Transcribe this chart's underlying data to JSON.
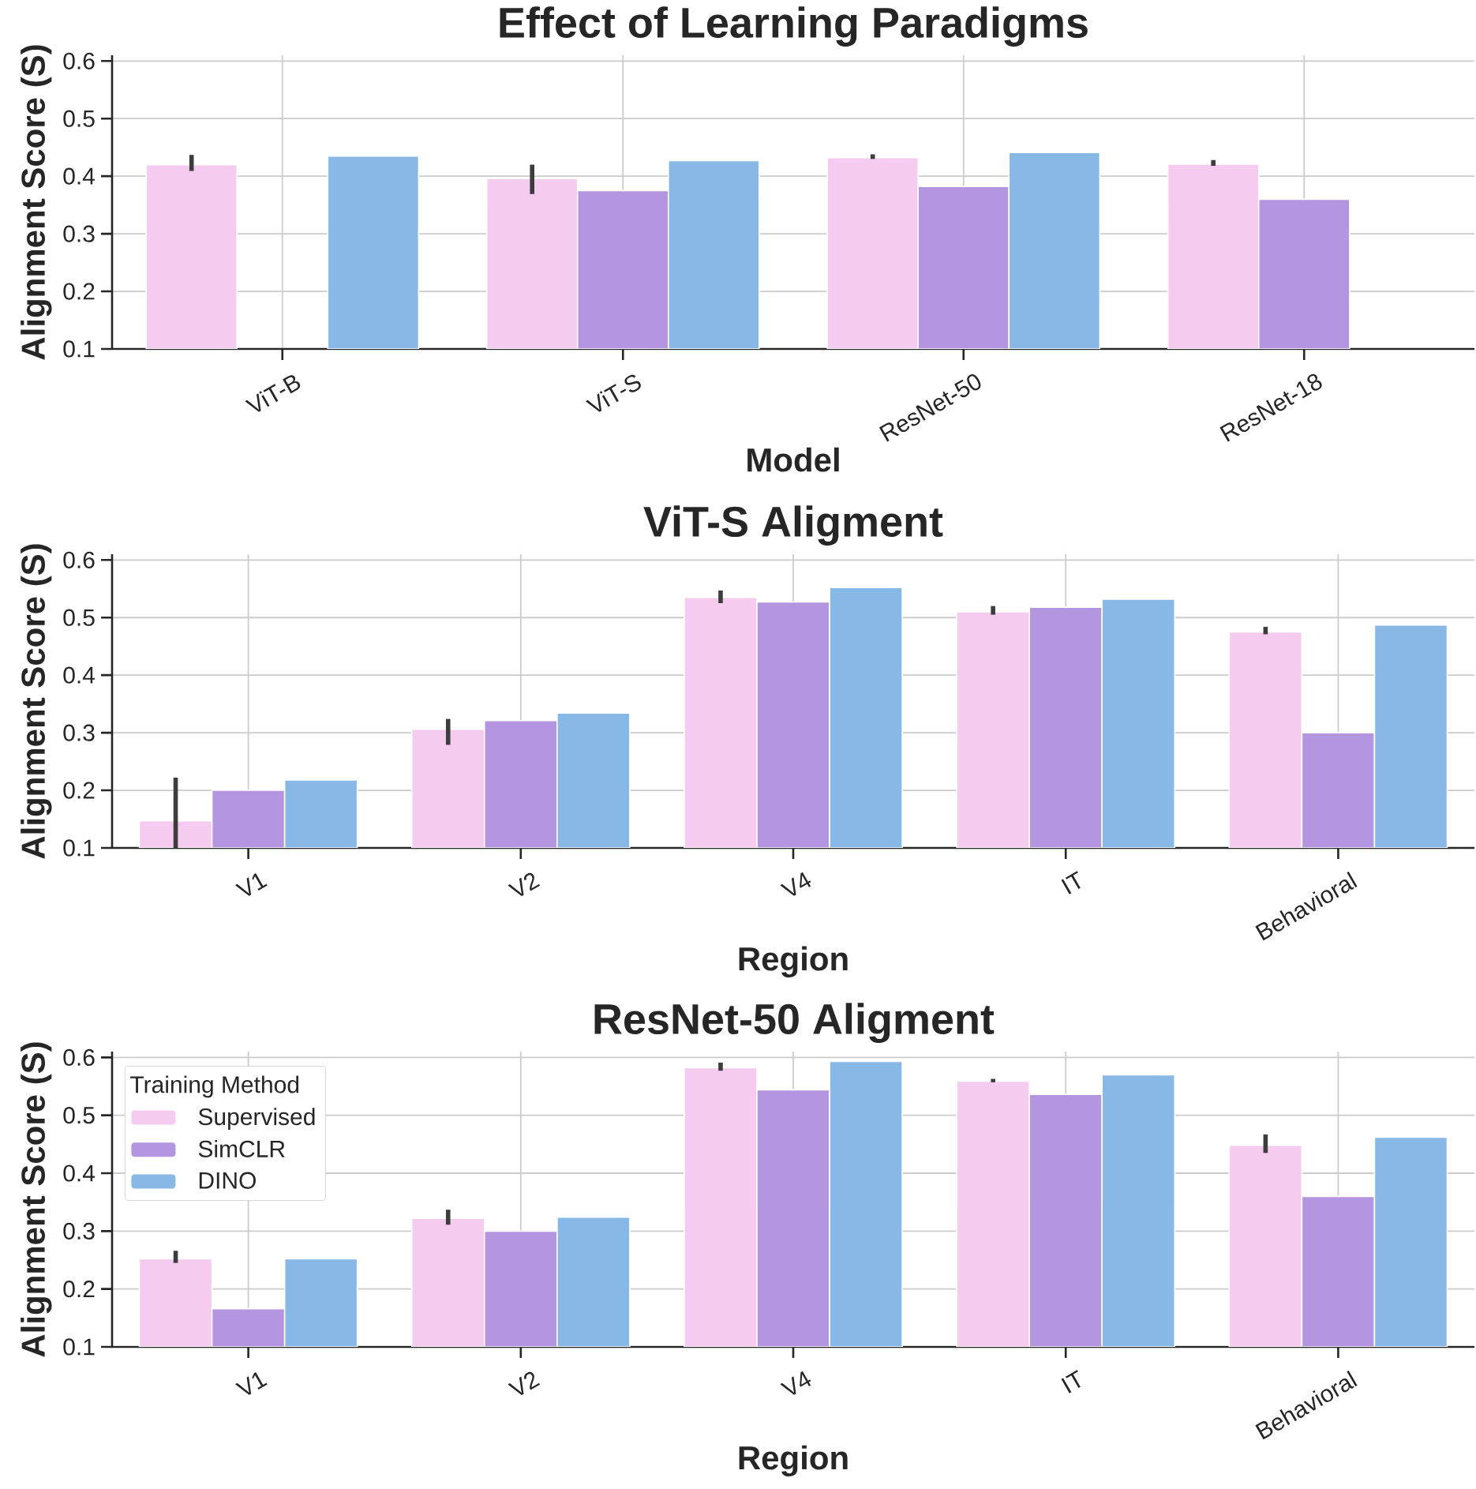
{
  "chart_data": [
    {
      "type": "bar",
      "title": "Effect of Learning Paradigms",
      "xlabel": "Model",
      "ylabel": "Alignment Score (S)",
      "categories": [
        "ViT-B",
        "ViT-S",
        "ResNet-50",
        "ResNet-18"
      ],
      "series": [
        {
          "color": "#f5cbef",
          "values": [
            0.42,
            0.396,
            0.432,
            0.421
          ],
          "errors": [
            [
              0.409,
              0.437
            ],
            [
              0.369,
              0.42
            ],
            [
              0.43,
              0.438
            ],
            [
              0.418,
              0.428
            ]
          ]
        },
        {
          "color": "#b495df",
          "values": [
            null,
            0.375,
            0.382,
            0.36
          ]
        },
        {
          "color": "#88b8e6",
          "values": [
            0.435,
            0.427,
            0.441,
            null
          ]
        }
      ],
      "ylim": [
        0.1,
        0.61
      ],
      "yticks": [
        0.1,
        0.2,
        0.3,
        0.4,
        0.5,
        0.6
      ],
      "grid": true
    },
    {
      "type": "bar",
      "title": "ViT-S Aligment",
      "xlabel": "Region",
      "ylabel": "Alignment Score (S)",
      "categories": [
        "V1",
        "V2",
        "V4",
        "IT",
        "Behavioral"
      ],
      "series": [
        {
          "color": "#f5cbef",
          "values": [
            0.147,
            0.306,
            0.535,
            0.51,
            0.475
          ],
          "errors": [
            [
              0.1,
              0.222
            ],
            [
              0.279,
              0.324
            ],
            [
              0.525,
              0.547
            ],
            [
              0.505,
              0.52
            ],
            [
              0.471,
              0.484
            ]
          ]
        },
        {
          "color": "#b495df",
          "values": [
            0.2,
            0.321,
            0.527,
            0.518,
            0.3
          ]
        },
        {
          "color": "#88b8e6",
          "values": [
            0.218,
            0.334,
            0.552,
            0.532,
            0.487
          ]
        }
      ],
      "ylim": [
        0.1,
        0.61
      ],
      "yticks": [
        0.1,
        0.2,
        0.3,
        0.4,
        0.5,
        0.6
      ],
      "grid": true
    },
    {
      "type": "bar",
      "title": "ResNet-50 Aligment",
      "xlabel": "Region",
      "ylabel": "Alignment Score (S)",
      "categories": [
        "V1",
        "V2",
        "V4",
        "IT",
        "Behavioral"
      ],
      "legend_title": "Training Method",
      "legend": "top left",
      "series": [
        {
          "name": "Supervised",
          "color": "#f5cbef",
          "values": [
            0.252,
            0.322,
            0.582,
            0.559,
            0.448
          ],
          "errors": [
            [
              0.245,
              0.266
            ],
            [
              0.311,
              0.337
            ],
            [
              0.577,
              0.591
            ],
            [
              0.557,
              0.563
            ],
            [
              0.435,
              0.467
            ]
          ]
        },
        {
          "name": "SimCLR",
          "color": "#b495df",
          "values": [
            0.166,
            0.3,
            0.544,
            0.536,
            0.36
          ]
        },
        {
          "name": "DINO",
          "color": "#88b8e6",
          "values": [
            0.252,
            0.324,
            0.593,
            0.57,
            0.462
          ]
        }
      ],
      "ylim": [
        0.1,
        0.61
      ],
      "yticks": [
        0.1,
        0.2,
        0.3,
        0.4,
        0.5,
        0.6
      ],
      "grid": true
    }
  ]
}
